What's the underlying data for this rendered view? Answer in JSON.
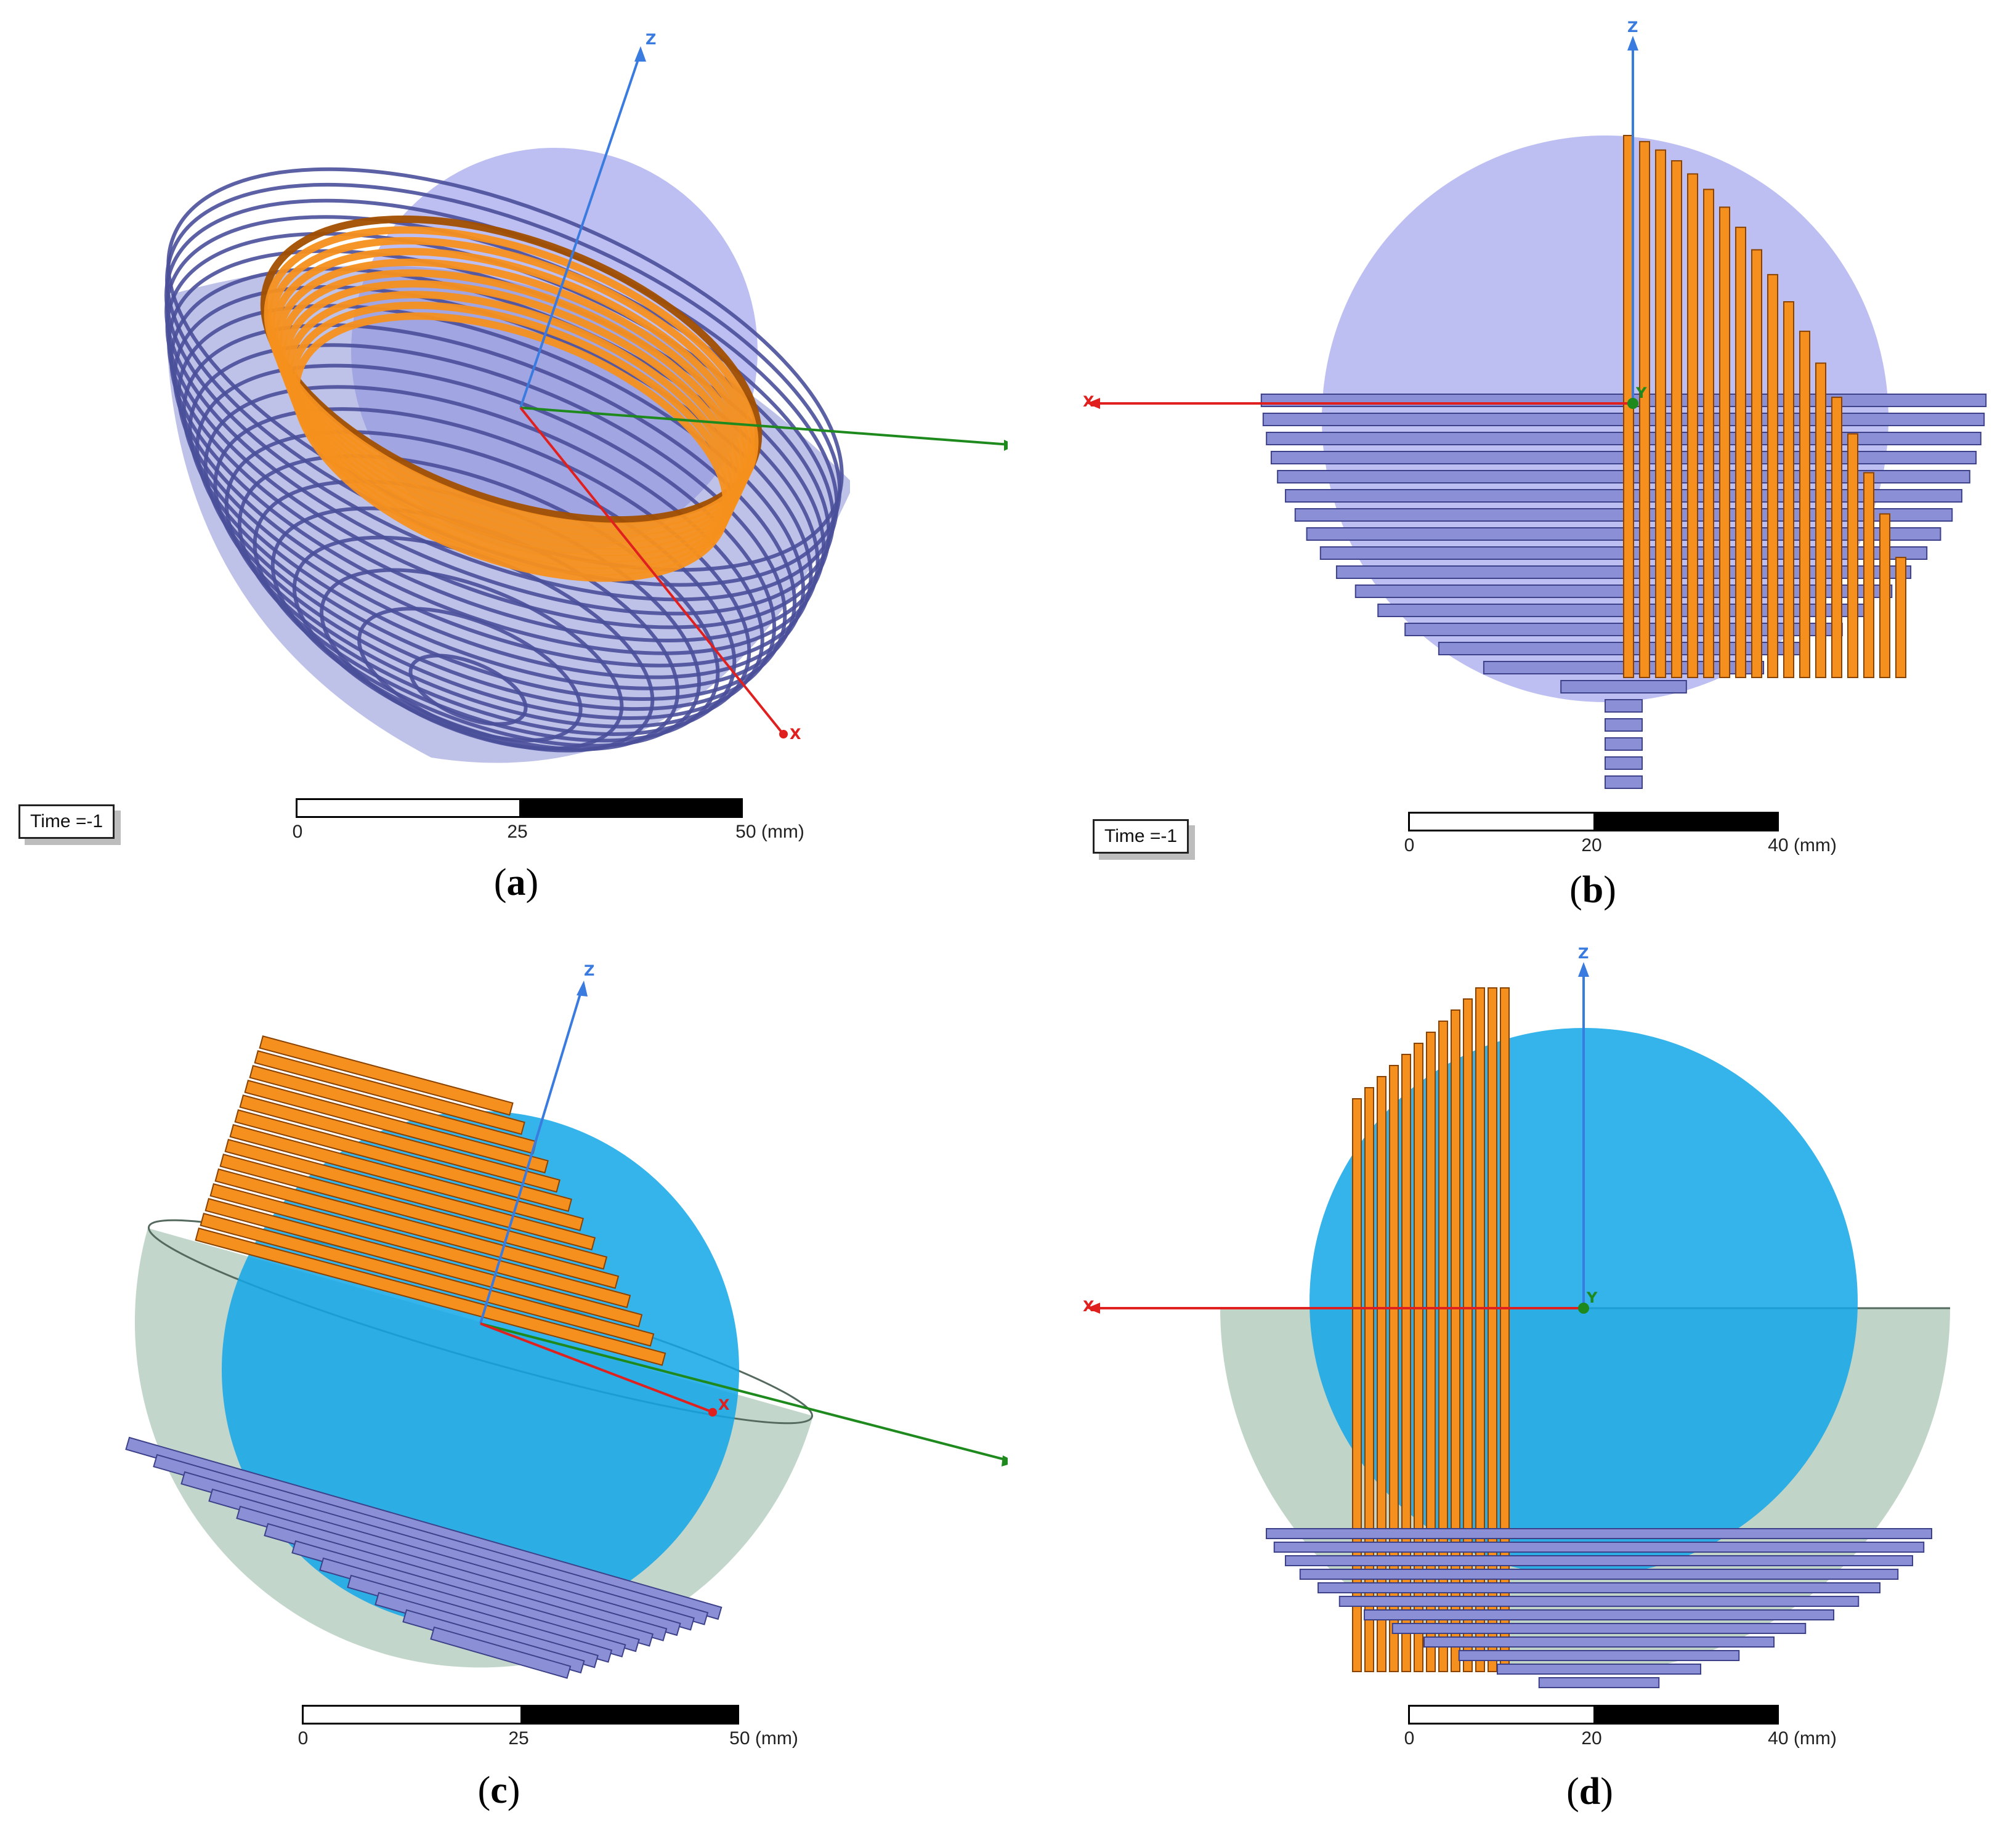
{
  "panels": {
    "a": {
      "caption_open": "(",
      "caption_letter": "a",
      "caption_close": ")",
      "time": "Time =-1",
      "axes": {
        "z": "Z",
        "y": "Y",
        "x": "X"
      },
      "scale": {
        "ticks": [
          "0",
          "25",
          "50 (mm)"
        ]
      }
    },
    "b": {
      "caption_open": "(",
      "caption_letter": "b",
      "caption_close": ")",
      "time": "Time =-1",
      "axes": {
        "z": "Z",
        "x": "X",
        "y": "Y"
      },
      "scale": {
        "ticks": [
          "0",
          "20",
          "40 (mm)"
        ]
      }
    },
    "c": {
      "caption_open": "(",
      "caption_letter": "c",
      "caption_close": ")",
      "axes": {
        "z": "Z",
        "y": "Y",
        "x": "X"
      },
      "scale": {
        "ticks": [
          "0",
          "25",
          "50 (mm)"
        ]
      }
    },
    "d": {
      "caption_open": "(",
      "caption_letter": "d",
      "caption_close": ")",
      "axes": {
        "z": "Z",
        "x": "X",
        "y": "Y"
      },
      "scale": {
        "ticks": [
          "0",
          "20",
          "40 (mm)"
        ]
      }
    }
  },
  "colors": {
    "sphere_lavender": "#a7a9ee",
    "sphere_blue": "#12a6e8",
    "coil_blue": "#8b8fd6",
    "coil_orange": "#f5901e",
    "shell_green": "#b9cfc2",
    "axis_x": "#e0201f",
    "axis_y": "#1e8a1e",
    "axis_z": "#3a7be0"
  }
}
